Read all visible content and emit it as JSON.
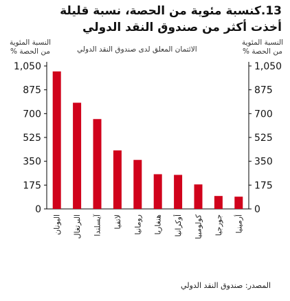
{
  "title": {
    "line1": "13.كنسبة مئوية من الحصة، نسبة قليلة",
    "line2": "أخذت أكثر من صندوق النقد الدولي"
  },
  "axis": {
    "left_unit": "النسبة المئوية من الحصة %",
    "right_unit": "النسبة المئوية من الحصة %"
  },
  "legend": "الائتمان المعلق لدى صندوق النقد الدولي",
  "source": "المصدر: صندوق النقد الدولي",
  "colors": {
    "bar": "#d0021b",
    "axis": "#000000"
  },
  "chart_data": {
    "type": "bar",
    "categories": [
      "اليونان",
      "البرتغال",
      "آيسلندا",
      "لاتفيا",
      "رومانيا",
      "هنغاريا",
      "أوكرانيا",
      "كولومبيا",
      "جورجيا",
      "أرمينيا"
    ],
    "series": [
      {
        "name": "الائتمان المعلق لدى صندوق النقد الدولي",
        "values": [
          1010,
          780,
          660,
          430,
          360,
          255,
          250,
          180,
          95,
          90
        ]
      }
    ],
    "yticks": [
      0,
      175,
      350,
      525,
      700,
      875,
      1050
    ],
    "ytick_labels": [
      "0",
      "175",
      "350",
      "525",
      "700",
      "875",
      "1,050"
    ],
    "ylim": [
      0,
      1050
    ],
    "grid": false
  }
}
